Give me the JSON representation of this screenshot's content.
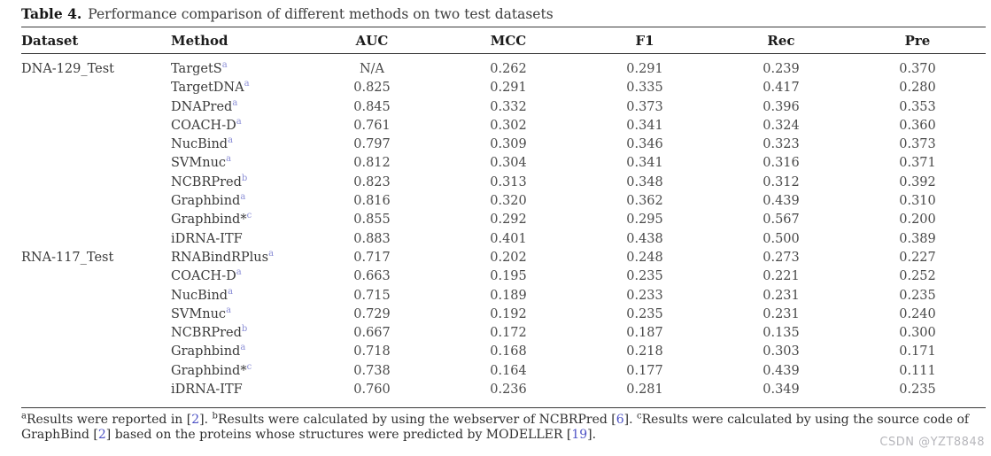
{
  "caption": {
    "label": "Table 4.",
    "text": "Performance comparison of different methods on two test datasets"
  },
  "table": {
    "columns": [
      "Dataset",
      "Method",
      "AUC",
      "MCC",
      "F1",
      "Rec",
      "Pre"
    ],
    "rows": [
      {
        "dataset": "DNA-129_Test",
        "method": "TargetS",
        "sup": "a",
        "auc": "N/A",
        "mcc": "0.262",
        "f1": "0.291",
        "rec": "0.239",
        "pre": "0.370"
      },
      {
        "dataset": "",
        "method": "TargetDNA",
        "sup": "a",
        "auc": "0.825",
        "mcc": "0.291",
        "f1": "0.335",
        "rec": "0.417",
        "pre": "0.280"
      },
      {
        "dataset": "",
        "method": "DNAPred",
        "sup": "a",
        "auc": "0.845",
        "mcc": "0.332",
        "f1": "0.373",
        "rec": "0.396",
        "pre": "0.353"
      },
      {
        "dataset": "",
        "method": "COACH-D",
        "sup": "a",
        "auc": "0.761",
        "mcc": "0.302",
        "f1": "0.341",
        "rec": "0.324",
        "pre": "0.360"
      },
      {
        "dataset": "",
        "method": "NucBind",
        "sup": "a",
        "auc": "0.797",
        "mcc": "0.309",
        "f1": "0.346",
        "rec": "0.323",
        "pre": "0.373"
      },
      {
        "dataset": "",
        "method": "SVMnuc",
        "sup": "a",
        "auc": "0.812",
        "mcc": "0.304",
        "f1": "0.341",
        "rec": "0.316",
        "pre": "0.371"
      },
      {
        "dataset": "",
        "method": "NCBRPred",
        "sup": "b",
        "auc": "0.823",
        "mcc": "0.313",
        "f1": "0.348",
        "rec": "0.312",
        "pre": "0.392"
      },
      {
        "dataset": "",
        "method": "Graphbind",
        "sup": "a",
        "auc": "0.816",
        "mcc": "0.320",
        "f1": "0.362",
        "rec": "0.439",
        "pre": "0.310"
      },
      {
        "dataset": "",
        "method": "Graphbind*",
        "sup": "c",
        "auc": "0.855",
        "mcc": "0.292",
        "f1": "0.295",
        "rec": "0.567",
        "pre": "0.200"
      },
      {
        "dataset": "",
        "method": "iDRNA-ITF",
        "sup": "",
        "auc": "0.883",
        "mcc": "0.401",
        "f1": "0.438",
        "rec": "0.500",
        "pre": "0.389"
      },
      {
        "dataset": "RNA-117_Test",
        "method": "RNABindRPlus",
        "sup": "a",
        "auc": "0.717",
        "mcc": "0.202",
        "f1": "0.248",
        "rec": "0.273",
        "pre": "0.227"
      },
      {
        "dataset": "",
        "method": "COACH-D",
        "sup": "a",
        "auc": "0.663",
        "mcc": "0.195",
        "f1": "0.235",
        "rec": "0.221",
        "pre": "0.252"
      },
      {
        "dataset": "",
        "method": "NucBind",
        "sup": "a",
        "auc": "0.715",
        "mcc": "0.189",
        "f1": "0.233",
        "rec": "0.231",
        "pre": "0.235"
      },
      {
        "dataset": "",
        "method": "SVMnuc",
        "sup": "a",
        "auc": "0.729",
        "mcc": "0.192",
        "f1": "0.235",
        "rec": "0.231",
        "pre": "0.240"
      },
      {
        "dataset": "",
        "method": "NCBRPred",
        "sup": "b",
        "auc": "0.667",
        "mcc": "0.172",
        "f1": "0.187",
        "rec": "0.135",
        "pre": "0.300"
      },
      {
        "dataset": "",
        "method": "Graphbind",
        "sup": "a",
        "auc": "0.718",
        "mcc": "0.168",
        "f1": "0.218",
        "rec": "0.303",
        "pre": "0.171"
      },
      {
        "dataset": "",
        "method": "Graphbind*",
        "sup": "c",
        "auc": "0.738",
        "mcc": "0.164",
        "f1": "0.177",
        "rec": "0.439",
        "pre": "0.111"
      },
      {
        "dataset": "",
        "method": "iDRNA-ITF",
        "sup": "",
        "auc": "0.760",
        "mcc": "0.236",
        "f1": "0.281",
        "rec": "0.349",
        "pre": "0.235"
      }
    ]
  },
  "footnotes": {
    "parts": [
      {
        "t": "sup",
        "v": "a"
      },
      {
        "t": "text",
        "v": "Results were reported in ["
      },
      {
        "t": "cite",
        "v": "2"
      },
      {
        "t": "text",
        "v": "]. "
      },
      {
        "t": "sup",
        "v": "b"
      },
      {
        "t": "text",
        "v": "Results were calculated by using the webserver of NCBRPred ["
      },
      {
        "t": "cite",
        "v": "6"
      },
      {
        "t": "text",
        "v": "]. "
      },
      {
        "t": "sup",
        "v": "c"
      },
      {
        "t": "text",
        "v": "Results were calculated by using the source code of GraphBind ["
      },
      {
        "t": "cite",
        "v": "2"
      },
      {
        "t": "text",
        "v": "] based on the proteins whose structures were predicted by MODELLER ["
      },
      {
        "t": "cite",
        "v": "19"
      },
      {
        "t": "text",
        "v": "]."
      }
    ]
  },
  "watermark": {
    "text": "CSDN @YZT8848"
  },
  "colors": {
    "marker_blue": "#8c8fd6",
    "citation_blue": "#4d52c5",
    "rule": "#3a3a3a",
    "watermark_gray": "#b6b6bb"
  }
}
